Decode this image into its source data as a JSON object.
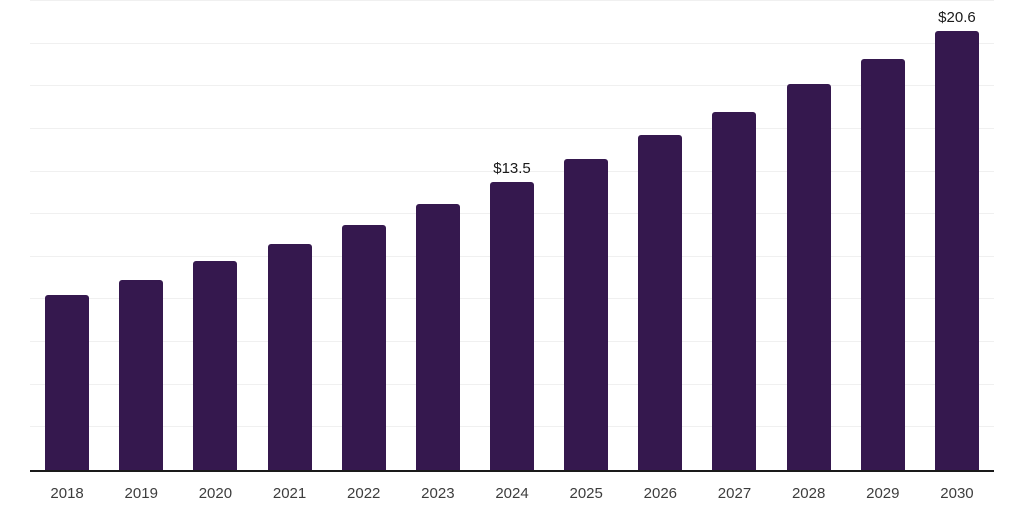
{
  "chart_data": {
    "type": "bar",
    "title": "",
    "xlabel": "",
    "ylabel": "",
    "categories": [
      "2018",
      "2019",
      "2020",
      "2021",
      "2022",
      "2023",
      "2024",
      "2025",
      "2026",
      "2027",
      "2028",
      "2029",
      "2030"
    ],
    "values": [
      8.2,
      8.9,
      9.8,
      10.6,
      11.5,
      12.5,
      13.5,
      14.6,
      15.7,
      16.8,
      18.1,
      19.3,
      20.6
    ],
    "data_labels": [
      "",
      "",
      "",
      "",
      "",
      "",
      "$13.5",
      "",
      "",
      "",
      "",
      "",
      "$20.6"
    ],
    "ylim": [
      0,
      22
    ],
    "grid_step": 2,
    "grid": true,
    "legend": false,
    "colors": {
      "bar": "#35184e",
      "gridline": "#f0f0f0",
      "axis": "#1a1a1a",
      "value_label": "#1a1a1a",
      "tick_label": "#3d3d3d"
    }
  }
}
